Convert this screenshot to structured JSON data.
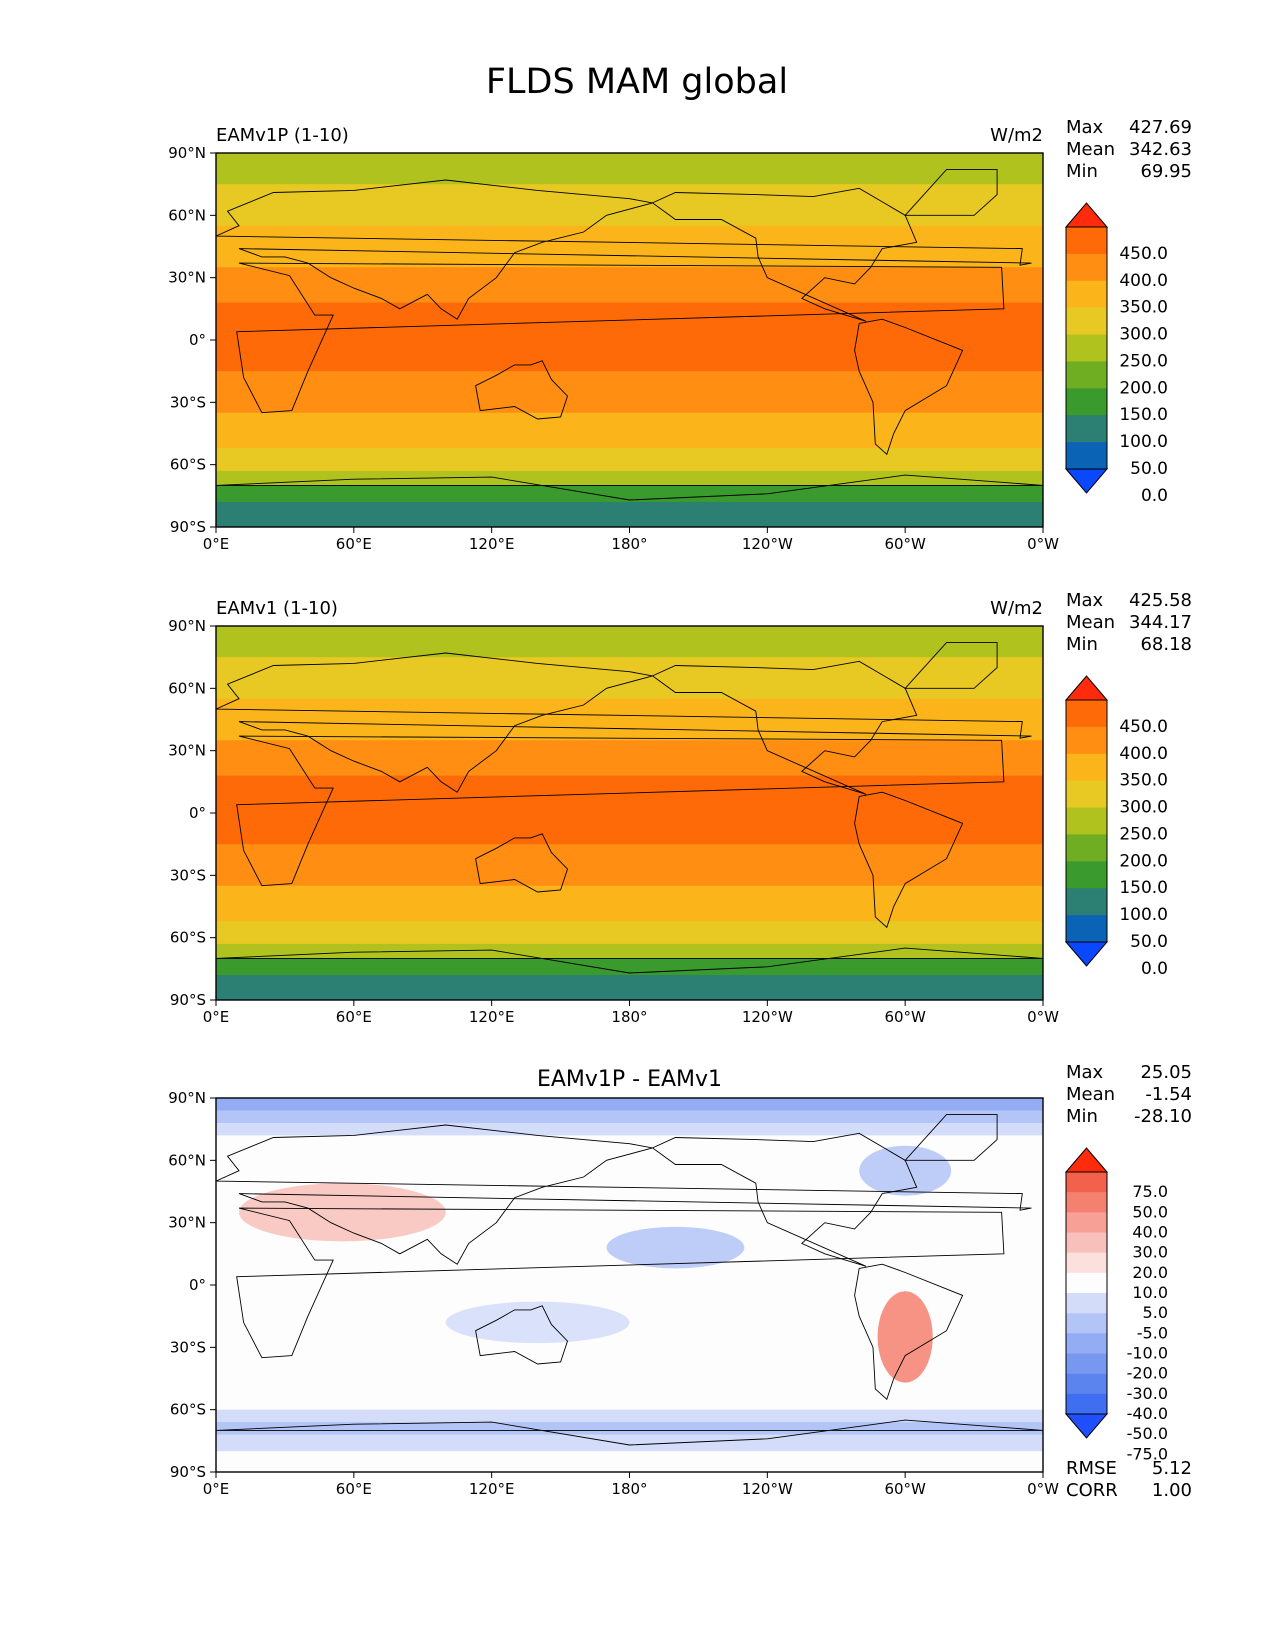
{
  "title": "FLDS MAM global",
  "lon_ticks": [
    "0°E",
    "60°E",
    "120°E",
    "180°",
    "120°W",
    "60°W",
    "0°W"
  ],
  "lat_ticks": [
    "90°N",
    "60°N",
    "30°N",
    "0°",
    "30°S",
    "60°S",
    "90°S"
  ],
  "colors": {
    "abs_levels": [
      "#0a48ff",
      "#0b63b5",
      "#2c7f73",
      "#3a9a2e",
      "#6fae22",
      "#afc21e",
      "#e8c823",
      "#fbb41a",
      "#ff8e12",
      "#ff6a08",
      "#ff2b0c"
    ],
    "diff_levels": [
      "#1f4fff",
      "#3f6ef2",
      "#5b84ee",
      "#7898f0",
      "#94acf3",
      "#b3c4f6",
      "#d3ddfa",
      "#fdfdfd",
      "#fbe0dd",
      "#f8c0ba",
      "#f6a096",
      "#f48070",
      "#f3604c",
      "#ff2b0c"
    ]
  },
  "chart_data": [
    {
      "type": "heatmap",
      "panel_title": "EAMv1P (1-10)",
      "units": "W/m2",
      "stats": [
        {
          "label": "Max",
          "value": "427.69"
        },
        {
          "label": "Mean",
          "value": "342.63"
        },
        {
          "label": "Min",
          "value": "69.95"
        }
      ],
      "colorbar_ticks": [
        "450.0",
        "400.0",
        "350.0",
        "300.0",
        "250.0",
        "200.0",
        "150.0",
        "100.0",
        "50.0",
        "0.0"
      ],
      "field": "zonal-band FLDS, warm tropics ~400-450, polar ~100-200"
    },
    {
      "type": "heatmap",
      "panel_title": "EAMv1 (1-10)",
      "units": "W/m2",
      "stats": [
        {
          "label": "Max",
          "value": "425.58"
        },
        {
          "label": "Mean",
          "value": "344.17"
        },
        {
          "label": "Min",
          "value": "68.18"
        }
      ],
      "colorbar_ticks": [
        "450.0",
        "400.0",
        "350.0",
        "300.0",
        "250.0",
        "200.0",
        "150.0",
        "100.0",
        "50.0",
        "0.0"
      ],
      "field": "zonal-band FLDS, warm tropics ~400-450, polar ~100-200"
    },
    {
      "type": "heatmap",
      "panel_title": "EAMv1P - EAMv1",
      "units": "",
      "stats": [
        {
          "label": "Max",
          "value": "25.05"
        },
        {
          "label": "Mean",
          "value": "-1.54"
        },
        {
          "label": "Min",
          "value": "-28.10"
        }
      ],
      "colorbar_ticks": [
        "75.0",
        "50.0",
        "40.0",
        "30.0",
        "20.0",
        "10.0",
        "5.0",
        "-5.0",
        "-10.0",
        "-20.0",
        "-30.0",
        "-40.0",
        "-50.0",
        "-75.0"
      ],
      "footer_stats": [
        {
          "label": "RMSE",
          "value": "5.12"
        },
        {
          "label": "CORR",
          "value": "1.00"
        }
      ],
      "field": "difference mostly near zero, negative (blue) at high latitudes"
    }
  ]
}
